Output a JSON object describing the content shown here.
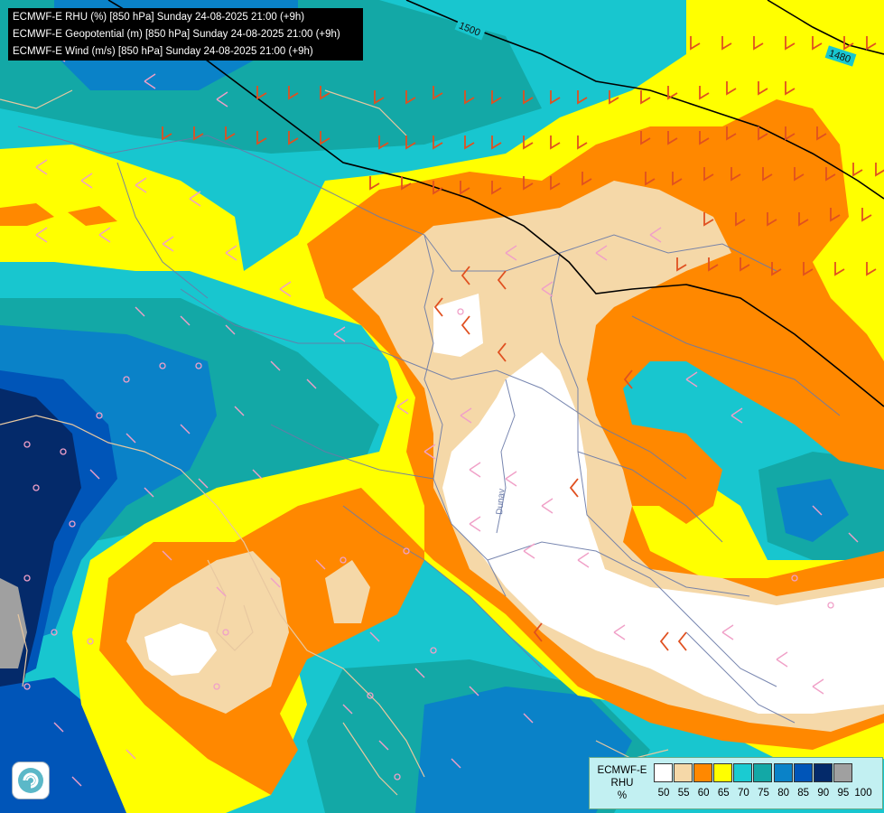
{
  "header": {
    "lines": [
      "ECMWF-E RHU (%) [850 hPa] Sunday 24-08-2025 21:00 (+9h)",
      "ECMWF-E Geopotential (m) [850 hPa] Sunday 24-08-2025 21:00 (+9h)",
      "ECMWF-E Wind (m/s) [850 hPa] Sunday 24-08-2025 21:00 (+9h)"
    ]
  },
  "contours": {
    "label_a": "1500",
    "label_b": "1480"
  },
  "legend": {
    "title_lines": [
      "ECMWF-E",
      "RHU",
      "%"
    ],
    "ticks": [
      "50",
      "55",
      "60",
      "65",
      "70",
      "75",
      "80",
      "85",
      "90",
      "95",
      "100"
    ],
    "colors": [
      "#ffffff",
      "#f5d8a8",
      "#ff8800",
      "#ffff00",
      "#1acbd2",
      "#13a8a6",
      "#0a82c8",
      "#0055b8",
      "#042a6a",
      "#a0a0a0",
      "#646464"
    ]
  },
  "map_labels": {
    "river": "Dunav"
  },
  "colors": {
    "wind_light": "#f0a0c8",
    "wind_strong": "#e05020",
    "contour": "#000000",
    "border": "#6a7aa8",
    "coast": "#e8c8a0"
  }
}
